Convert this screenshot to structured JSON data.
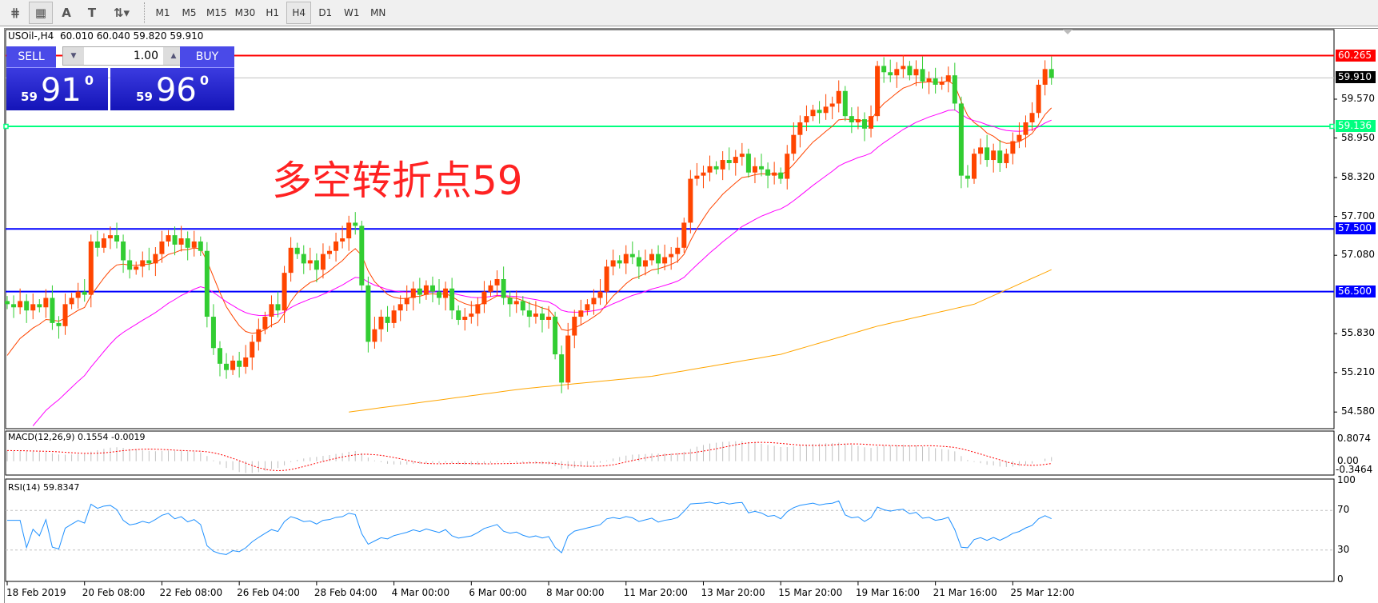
{
  "toolbar": {
    "icons": [
      "chart-experts-icon",
      "grid-icon",
      "text-a-icon",
      "text-label-icon",
      "arrows-icon"
    ],
    "text_a": "A",
    "text_t": "T",
    "timeframes": [
      "M1",
      "M5",
      "M15",
      "M30",
      "H1",
      "H4",
      "D1",
      "W1",
      "MN"
    ],
    "active_timeframe": "H4"
  },
  "chart": {
    "symbol_line": "USOil-,H4  60.010 60.040 59.820 59.910",
    "annotation": "多空转折点59",
    "up_color": "#ff4500",
    "down_color": "#32cd32",
    "closes": [
      56.3,
      56.25,
      56.35,
      56.2,
      56.3,
      56.25,
      56.4,
      56.0,
      55.95,
      56.3,
      56.4,
      56.5,
      56.45,
      57.3,
      57.2,
      57.35,
      57.4,
      57.3,
      57.0,
      56.85,
      56.9,
      57.0,
      56.95,
      57.1,
      57.3,
      57.4,
      57.25,
      57.35,
      57.2,
      57.3,
      57.15,
      56.1,
      55.6,
      55.35,
      55.25,
      55.4,
      55.3,
      55.45,
      55.7,
      55.9,
      56.1,
      56.3,
      56.2,
      56.8,
      57.2,
      57.1,
      56.95,
      57.0,
      56.85,
      57.1,
      57.15,
      57.3,
      57.35,
      57.6,
      57.55,
      56.6,
      55.7,
      55.9,
      56.1,
      56.0,
      56.2,
      56.3,
      56.4,
      56.55,
      56.45,
      56.6,
      56.5,
      56.4,
      56.55,
      56.2,
      56.05,
      56.1,
      56.15,
      56.3,
      56.5,
      56.6,
      56.7,
      56.4,
      56.3,
      56.35,
      56.2,
      56.1,
      56.15,
      56.05,
      56.1,
      55.5,
      55.05,
      55.8,
      56.1,
      56.2,
      56.3,
      56.4,
      56.5,
      56.9,
      57.0,
      56.95,
      57.1,
      57.05,
      56.9,
      57.0,
      57.1,
      56.95,
      57.05,
      57.1,
      57.2,
      57.6,
      58.3,
      58.35,
      58.4,
      58.5,
      58.45,
      58.6,
      58.55,
      58.65,
      58.7,
      58.4,
      58.5,
      58.45,
      58.35,
      58.4,
      58.3,
      58.7,
      59.0,
      59.2,
      59.3,
      59.4,
      59.35,
      59.45,
      59.5,
      59.7,
      59.3,
      59.2,
      59.25,
      59.1,
      59.3,
      60.1,
      60.0,
      59.95,
      60.05,
      60.1,
      59.95,
      60.05,
      59.85,
      59.9,
      59.8,
      59.85,
      59.95,
      59.5,
      58.35,
      58.3,
      58.7,
      58.8,
      58.6,
      58.75,
      58.55,
      58.7,
      58.9,
      59.0,
      59.2,
      59.35,
      59.8,
      60.05,
      59.91
    ],
    "ma_slow_orange": [
      [
        53,
        54.58
      ],
      [
        80,
        54.95
      ],
      [
        100,
        55.15
      ],
      [
        120,
        55.5
      ],
      [
        135,
        55.95
      ],
      [
        150,
        56.3
      ],
      [
        162,
        56.85
      ]
    ],
    "colors": {
      "ma_fast": "#ff4500",
      "ma_mid": "#ff00ff",
      "ma_slow": "#ffa500"
    },
    "hlines": [
      {
        "price": 60.265,
        "label": "60.265",
        "color": "#ff0000"
      },
      {
        "price": 59.91,
        "label": "59.910",
        "color": "#000000"
      },
      {
        "price": 59.136,
        "label": "59.136",
        "color": "#00ff7f"
      },
      {
        "price": 57.5,
        "label": "57.500",
        "color": "#0000ff"
      },
      {
        "price": 56.5,
        "label": "56.500",
        "color": "#0000ff"
      }
    ],
    "price_ticks": [
      "59.570",
      "58.950",
      "58.320",
      "57.700",
      "57.080",
      "55.830",
      "55.210",
      "54.580"
    ],
    "time_labels": [
      "18 Feb 2019",
      "20 Feb 08:00",
      "22 Feb 08:00",
      "26 Feb 04:00",
      "28 Feb 04:00",
      "4 Mar 00:00",
      "6 Mar 00:00",
      "8 Mar 00:00",
      "11 Mar 20:00",
      "13 Mar 20:00",
      "15 Mar 20:00",
      "19 Mar 16:00",
      "21 Mar 16:00",
      "25 Mar 12:00"
    ]
  },
  "trade_panel": {
    "sell_label": "SELL",
    "buy_label": "BUY",
    "lot": "1.00",
    "sell_prefix": "59",
    "sell_big": "91",
    "sell_sup": "0",
    "buy_prefix": "59",
    "buy_big": "96",
    "buy_sup": "0"
  },
  "macd": {
    "label": "MACD(12,26,9) 0.1554 -0.0019",
    "ticks": [
      "0.8074",
      "0.00",
      "-0.3464"
    ]
  },
  "rsi": {
    "label": "RSI(14) 59.8347",
    "ticks": [
      "100",
      "70",
      "30",
      "0"
    ],
    "levels": [
      70,
      30
    ]
  }
}
